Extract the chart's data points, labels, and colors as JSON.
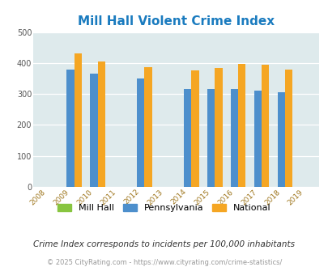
{
  "title": "Mill Hall Violent Crime Index",
  "years": [
    2008,
    2009,
    2010,
    2011,
    2012,
    2013,
    2014,
    2015,
    2016,
    2017,
    2018,
    2019
  ],
  "mill_hall": [
    0,
    0,
    0,
    0,
    0,
    0,
    0,
    0,
    0,
    0,
    0,
    0
  ],
  "pennsylvania": [
    0,
    379,
    366,
    0,
    349,
    0,
    315,
    315,
    315,
    311,
    306,
    0
  ],
  "national": [
    0,
    432,
    405,
    0,
    387,
    0,
    377,
    383,
    397,
    394,
    379,
    0
  ],
  "bar_width": 0.32,
  "ylim": [
    0,
    500
  ],
  "yticks": [
    0,
    100,
    200,
    300,
    400,
    500
  ],
  "color_mill_hall": "#88c540",
  "color_pennsylvania": "#4d8fcc",
  "color_national": "#f5a623",
  "background_color": "#deeaec",
  "title_color": "#1a7bbf",
  "title_fontsize": 11,
  "subtitle": "Crime Index corresponds to incidents per 100,000 inhabitants",
  "footer": "© 2025 CityRating.com - https://www.cityrating.com/crime-statistics/",
  "legend_labels": [
    "Mill Hall",
    "Pennsylvania",
    "National"
  ],
  "grid_color": "#ffffff",
  "tick_label_color": "#a07820",
  "ytick_label_color": "#555555"
}
